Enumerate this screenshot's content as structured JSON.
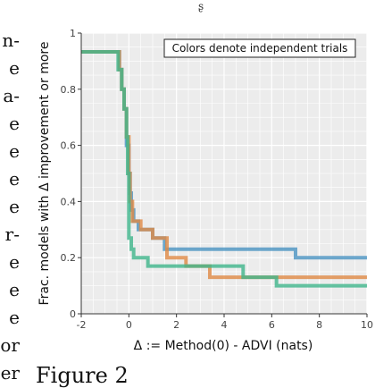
{
  "left_text_fragments": [
    "n-",
    "e",
    "a-",
    "e",
    "e",
    "e",
    "e",
    "r-",
    "e",
    "e",
    "e",
    "or",
    "er"
  ],
  "top_glyph": "ʂ",
  "caption": "Figure 2",
  "colors": {
    "series_blue": "#4a93c2",
    "series_orange": "#e08a45",
    "series_green": "#3fb58b",
    "grid": "#ffffff",
    "panel": "#ececec"
  },
  "chart_data": {
    "type": "line",
    "step": true,
    "xlabel": "Δ := Method(0) - ADVI (nats)",
    "ylabel": "Frac. models with Δ improvement or more",
    "xlim": [
      -2,
      10
    ],
    "ylim": [
      0,
      1
    ],
    "xticks": [
      "-2",
      "0",
      "2",
      "4",
      "6",
      "8",
      "10"
    ],
    "yticks": [
      "0",
      "0.2",
      "0.4",
      "0.6",
      "0.8",
      "1"
    ],
    "xtick_values": [
      -2,
      0,
      2,
      4,
      6,
      8,
      10
    ],
    "ytick_values": [
      0,
      0.2,
      0.4,
      0.6,
      0.8,
      1
    ],
    "annotation": "Colors denote independent trials",
    "legend_position": "top-right",
    "grid": true,
    "series": [
      {
        "color": "#4a93c2",
        "points": [
          [
            -2,
            0.933
          ],
          [
            -0.6,
            0.933
          ],
          [
            -0.4,
            0.87
          ],
          [
            -0.3,
            0.8
          ],
          [
            -0.2,
            0.73
          ],
          [
            -0.1,
            0.6
          ],
          [
            0,
            0.5
          ],
          [
            0.05,
            0.43
          ],
          [
            0.1,
            0.37
          ],
          [
            0.2,
            0.33
          ],
          [
            0.4,
            0.3
          ],
          [
            1,
            0.27
          ],
          [
            1.5,
            0.23
          ],
          [
            7,
            0.2
          ],
          [
            10,
            0.2
          ]
        ]
      },
      {
        "color": "#e08a45",
        "points": [
          [
            -2,
            0.933
          ],
          [
            -0.6,
            0.933
          ],
          [
            -0.4,
            0.87
          ],
          [
            -0.3,
            0.8
          ],
          [
            -0.2,
            0.73
          ],
          [
            -0.1,
            0.63
          ],
          [
            0,
            0.5
          ],
          [
            0.05,
            0.4
          ],
          [
            0.15,
            0.33
          ],
          [
            0.5,
            0.3
          ],
          [
            1,
            0.27
          ],
          [
            1.6,
            0.2
          ],
          [
            2.4,
            0.17
          ],
          [
            3.4,
            0.13
          ],
          [
            10,
            0.13
          ]
        ]
      },
      {
        "color": "#3fb58b",
        "points": [
          [
            -2,
            0.933
          ],
          [
            -0.6,
            0.933
          ],
          [
            -0.45,
            0.87
          ],
          [
            -0.3,
            0.8
          ],
          [
            -0.2,
            0.73
          ],
          [
            -0.1,
            0.63
          ],
          [
            -0.05,
            0.5
          ],
          [
            0,
            0.27
          ],
          [
            0.1,
            0.23
          ],
          [
            0.2,
            0.2
          ],
          [
            0.8,
            0.17
          ],
          [
            4.8,
            0.13
          ],
          [
            6.2,
            0.1
          ],
          [
            10,
            0.1
          ]
        ]
      }
    ]
  }
}
